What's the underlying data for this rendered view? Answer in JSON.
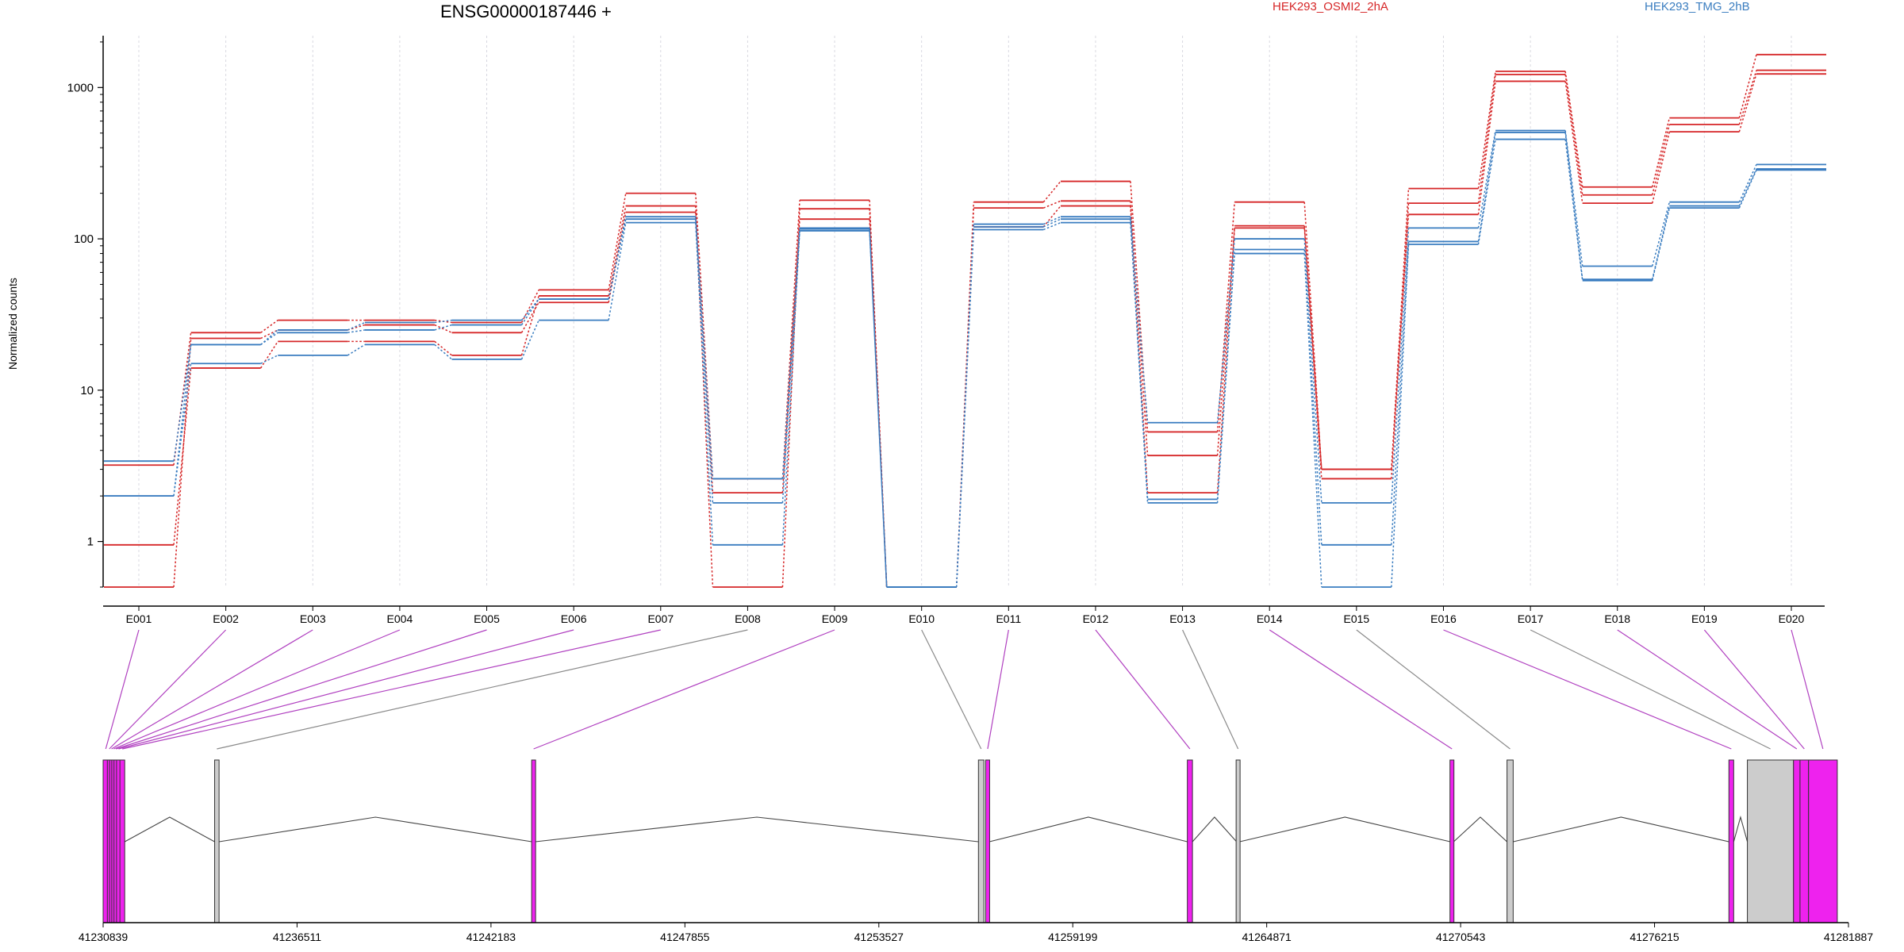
{
  "chart_data": {
    "type": "line",
    "title": "ENSG00000187446 +",
    "ylabel": "Normalized counts",
    "xlabel": "",
    "yscale": "log",
    "ylim": [
      0.5,
      2200
    ],
    "yticks": [
      "1",
      "10",
      "100",
      "1000"
    ],
    "ytick_values": [
      1,
      10,
      100,
      1000
    ],
    "grid": "vertical dotted",
    "legend_placement": "top",
    "categories": [
      "E001",
      "E002",
      "E003",
      "E004",
      "E005",
      "E006",
      "E007",
      "E008",
      "E009",
      "E010",
      "E011",
      "E012",
      "E013",
      "E014",
      "E015",
      "E016",
      "E017",
      "E018",
      "E019",
      "E020"
    ],
    "series": [
      {
        "name": "HEK293_OSMI2_2hA",
        "color": "#d62728",
        "values": [
          3.2,
          24,
          29,
          29,
          28,
          46,
          200,
          2.6,
          180,
          0.5,
          175,
          240,
          5.3,
          175,
          3.0,
          215,
          1280,
          220,
          630,
          1650
        ]
      },
      {
        "name": "HEK293_OSMI2_2hA",
        "color": "#d62728",
        "values": [
          0.95,
          14,
          21,
          21,
          17,
          42,
          165,
          0.5,
          158,
          0.5,
          160,
          178,
          3.7,
          122,
          2.6,
          172,
          1220,
          195,
          570,
          1300
        ]
      },
      {
        "name": "HEK293_OSMI2_2hA",
        "color": "#d62728",
        "values": [
          0.5,
          22,
          25,
          27,
          24,
          38,
          150,
          2.1,
          135,
          0.5,
          120,
          165,
          2.1,
          118,
          3.0,
          145,
          1100,
          172,
          510,
          1230
        ]
      },
      {
        "name": "HEK293_TMG_2hB",
        "color": "#3a7dc0",
        "values": [
          3.4,
          20,
          25,
          28,
          29,
          40,
          140,
          2.6,
          118,
          0.5,
          125,
          140,
          6.1,
          100,
          1.8,
          118,
          520,
          66,
          175,
          310
        ]
      },
      {
        "name": "HEK293_TMG_2hB",
        "color": "#3a7dc0",
        "values": [
          2.0,
          20,
          24,
          25,
          27,
          40,
          135,
          1.8,
          116,
          0.5,
          120,
          135,
          1.9,
          85,
          0.95,
          96,
          505,
          54,
          165,
          290
        ]
      },
      {
        "name": "HEK293_TMG_2hB",
        "color": "#3a7dc0",
        "values": [
          2.0,
          15,
          17,
          20,
          16,
          29,
          128,
          0.95,
          113,
          0.5,
          115,
          128,
          1.8,
          80,
          0.5,
          92,
          455,
          53,
          160,
          285
        ]
      }
    ],
    "genome": {
      "ticks": [
        "41230839",
        "41236511",
        "41242183",
        "41247855",
        "41253527",
        "41259199",
        "41264871",
        "41270543",
        "41276215",
        "41281887"
      ],
      "tick_values": [
        41230839,
        41236511,
        41242183,
        41247855,
        41253527,
        41259199,
        41264871,
        41270543,
        41276215,
        41281887
      ],
      "exons": [
        {
          "id": "E001",
          "start": 41230839,
          "end": 41230990,
          "color": "#ee22ee"
        },
        {
          "id": "E002",
          "start": 41230990,
          "end": 41231050,
          "color": "#ee22ee"
        },
        {
          "id": "E003",
          "start": 41231050,
          "end": 41231120,
          "color": "#ee22ee"
        },
        {
          "id": "E004",
          "start": 41231120,
          "end": 41231180,
          "color": "#ee22ee"
        },
        {
          "id": "E005",
          "start": 41231180,
          "end": 41231250,
          "color": "#ee22ee"
        },
        {
          "id": "E006",
          "start": 41231250,
          "end": 41231330,
          "color": "#ee22ee"
        },
        {
          "id": "E007",
          "start": 41231330,
          "end": 41231470,
          "color": "#ee22ee"
        },
        {
          "id": "E008",
          "start": 41234100,
          "end": 41234230,
          "color": "#cccccc"
        },
        {
          "id": "E009",
          "start": 41243380,
          "end": 41243480,
          "color": "#ee22ee"
        },
        {
          "id": "E010",
          "start": 41256440,
          "end": 41256600,
          "color": "#cccccc"
        },
        {
          "id": "E011",
          "start": 41256660,
          "end": 41256760,
          "color": "#ee22ee"
        },
        {
          "id": "E012",
          "start": 41262550,
          "end": 41262700,
          "color": "#ee22ee"
        },
        {
          "id": "E013",
          "start": 41263990,
          "end": 41264080,
          "color": "#cccccc"
        },
        {
          "id": "E014",
          "start": 41270240,
          "end": 41270340,
          "color": "#ee22ee"
        },
        {
          "id": "E015",
          "start": 41271900,
          "end": 41272080,
          "color": "#cccccc"
        },
        {
          "id": "E016",
          "start": 41278390,
          "end": 41278530,
          "color": "#ee22ee"
        },
        {
          "id": "E017",
          "start": 41278930,
          "end": 41280280,
          "color": "#cccccc"
        },
        {
          "id": "E018",
          "start": 41280280,
          "end": 41280470,
          "color": "#ee22ee"
        },
        {
          "id": "E019",
          "start": 41280470,
          "end": 41280720,
          "color": "#ee22ee"
        },
        {
          "id": "E020",
          "start": 41280720,
          "end": 41281560,
          "color": "#ee22ee"
        }
      ]
    }
  },
  "legend": {
    "series_a": "HEK293_OSMI2_2hA",
    "series_b": "HEK293_TMG_2hB"
  }
}
